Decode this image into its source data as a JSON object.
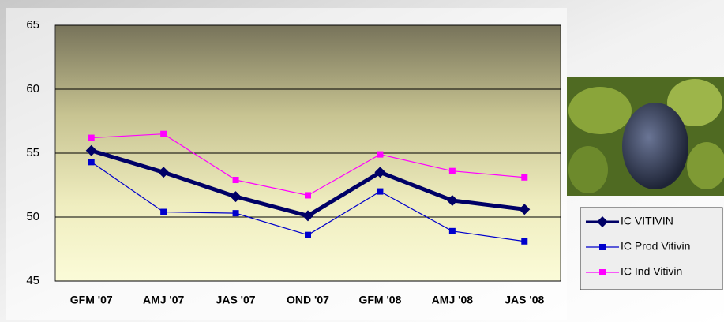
{
  "chart_data": {
    "type": "line",
    "categories": [
      "GFM '07",
      "AMJ '07",
      "JAS '07",
      "OND '07",
      "GFM '08",
      "AMJ '08",
      "JAS '08"
    ],
    "series": [
      {
        "name": "IC VITIVIN",
        "color": "#000066",
        "values": [
          55.2,
          53.5,
          51.6,
          50.1,
          53.5,
          51.3,
          50.6
        ]
      },
      {
        "name": "IC Prod Vitivin",
        "color": "#0000cc",
        "values": [
          54.3,
          50.4,
          50.3,
          48.6,
          52.0,
          48.9,
          48.1
        ]
      },
      {
        "name": "IC Ind Vitivin",
        "color": "#ff00ff",
        "values": [
          56.2,
          56.5,
          52.9,
          51.7,
          54.9,
          53.6,
          53.1
        ]
      }
    ],
    "ylim": [
      45,
      65
    ],
    "yticks": [
      45,
      50,
      55,
      60,
      65
    ],
    "grid": true
  }
}
